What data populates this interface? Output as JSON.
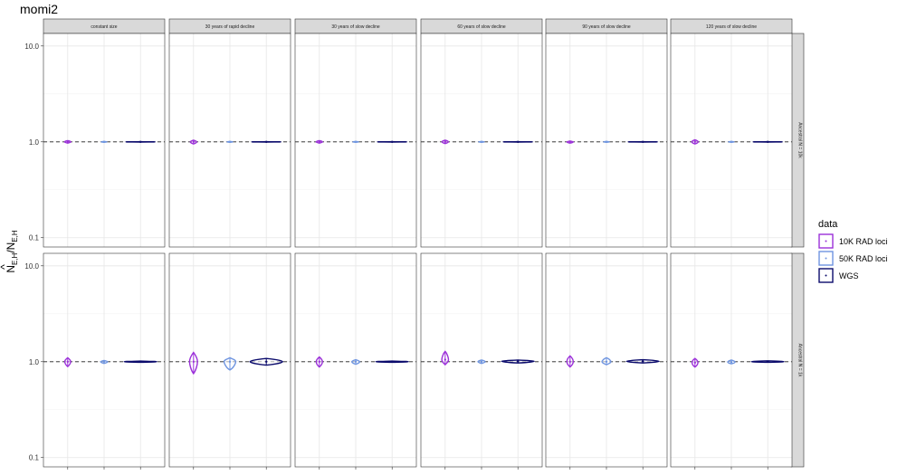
{
  "chart_data": {
    "type": "violin",
    "title": "momi2",
    "ylabel": "N̂_E,H/N_E,H",
    "ylabel_main": "N",
    "ylabel_hat": "^",
    "ylabel_sub1": "E,H",
    "ylabel_slash": "/N",
    "ylabel_sub2": "E,H",
    "y_scale": "log10",
    "ylim": [
      0.08,
      13.5
    ],
    "y_ticks": [
      0.1,
      1.0,
      10.0
    ],
    "y_tick_labels": [
      "0.1",
      "1.0",
      "10.0"
    ],
    "reference_line": 1.0,
    "grid": true,
    "column_facets": [
      "constant size",
      "30 years of rapid decline",
      "30 years of slow decline",
      "60 years of slow decline",
      "90 years of slow decline",
      "120 years of slow decline"
    ],
    "row_facets": [
      "Ancestral N = 10k",
      "Ancestral N = 1k"
    ],
    "legend": {
      "title": "data",
      "placement": "right",
      "entries": [
        {
          "label": "10K RAD loci",
          "color": "#9b30d9"
        },
        {
          "label": "50K RAD loci",
          "color": "#6f95e0"
        },
        {
          "label": "WGS",
          "color": "#0a0a6b"
        }
      ]
    },
    "series_colors": [
      "#9b30d9",
      "#6f95e0",
      "#0a0a6b"
    ],
    "violins": [
      [
        [
          {
            "min": 0.97,
            "max": 1.03,
            "median": 1.0
          },
          {
            "min": 0.99,
            "max": 1.01,
            "median": 1.0
          },
          {
            "min": 0.995,
            "max": 1.005,
            "median": 1.0
          }
        ],
        [
          {
            "min": 0.95,
            "max": 1.04,
            "median": 1.0
          },
          {
            "min": 0.99,
            "max": 1.01,
            "median": 1.0
          },
          {
            "min": 0.995,
            "max": 1.005,
            "median": 1.0
          }
        ],
        [
          {
            "min": 0.97,
            "max": 1.03,
            "median": 1.0
          },
          {
            "min": 0.99,
            "max": 1.01,
            "median": 1.0
          },
          {
            "min": 0.995,
            "max": 1.005,
            "median": 1.0
          }
        ],
        [
          {
            "min": 0.96,
            "max": 1.04,
            "median": 1.0
          },
          {
            "min": 0.99,
            "max": 1.01,
            "median": 1.0
          },
          {
            "min": 0.995,
            "max": 1.005,
            "median": 1.0
          }
        ],
        [
          {
            "min": 0.97,
            "max": 1.02,
            "median": 1.0
          },
          {
            "min": 0.99,
            "max": 1.01,
            "median": 1.0
          },
          {
            "min": 0.995,
            "max": 1.005,
            "median": 1.0
          }
        ],
        [
          {
            "min": 0.95,
            "max": 1.05,
            "median": 1.0
          },
          {
            "min": 0.99,
            "max": 1.01,
            "median": 1.0
          },
          {
            "min": 0.995,
            "max": 1.005,
            "median": 1.0
          }
        ]
      ],
      [
        [
          {
            "min": 0.89,
            "max": 1.1,
            "median": 1.0
          },
          {
            "min": 0.96,
            "max": 1.03,
            "median": 1.0
          },
          {
            "min": 0.985,
            "max": 1.015,
            "median": 1.0
          }
        ],
        [
          {
            "min": 0.75,
            "max": 1.25,
            "median": 1.0
          },
          {
            "min": 0.82,
            "max": 1.1,
            "median": 1.0
          },
          {
            "min": 0.92,
            "max": 1.08,
            "median": 1.0
          }
        ],
        [
          {
            "min": 0.88,
            "max": 1.12,
            "median": 1.0
          },
          {
            "min": 0.94,
            "max": 1.05,
            "median": 1.0
          },
          {
            "min": 0.985,
            "max": 1.015,
            "median": 1.0
          }
        ],
        [
          {
            "min": 0.93,
            "max": 1.28,
            "median": 1.05
          },
          {
            "min": 0.96,
            "max": 1.04,
            "median": 1.0
          },
          {
            "min": 0.97,
            "max": 1.04,
            "median": 1.01
          }
        ],
        [
          {
            "min": 0.88,
            "max": 1.15,
            "median": 1.0
          },
          {
            "min": 0.93,
            "max": 1.1,
            "median": 1.0
          },
          {
            "min": 0.97,
            "max": 1.05,
            "median": 1.01
          }
        ],
        [
          {
            "min": 0.88,
            "max": 1.08,
            "median": 0.98
          },
          {
            "min": 0.95,
            "max": 1.04,
            "median": 0.99
          },
          {
            "min": 0.985,
            "max": 1.02,
            "median": 1.0
          }
        ]
      ]
    ]
  }
}
